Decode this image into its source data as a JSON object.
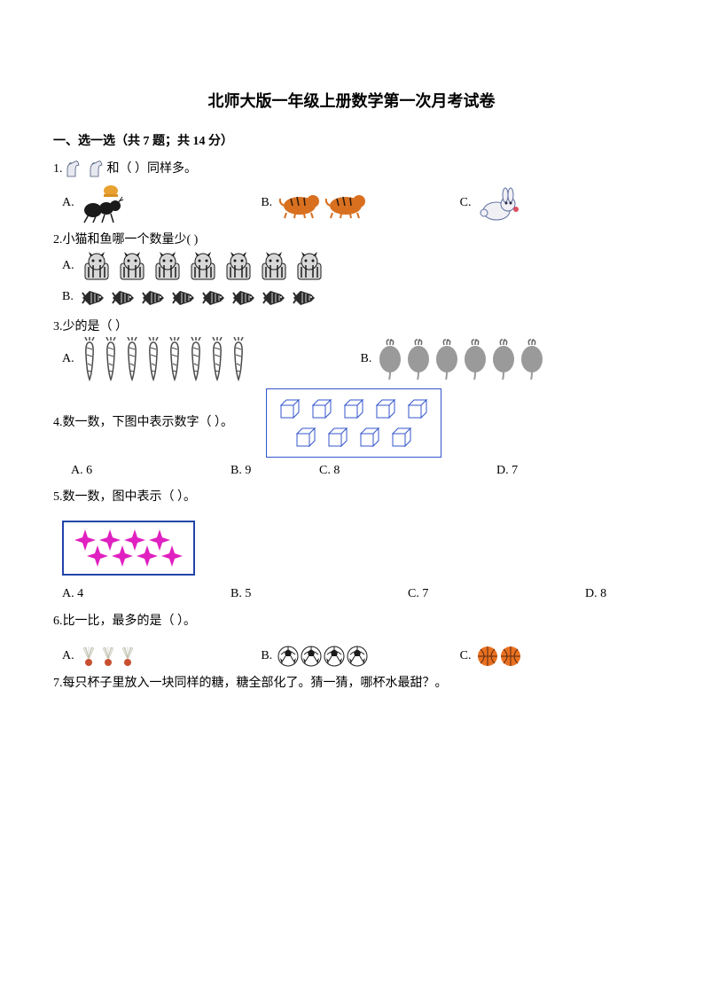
{
  "title": "北师大版一年级上册数学第一次月考试卷",
  "section1": {
    "header": "一、选一选（共 7 题；共 14 分）"
  },
  "q1": {
    "prefix": "1.",
    "mid": "和（  ）同样多。",
    "optA": "A.",
    "optB": "B.",
    "optC": "C.",
    "counts": {
      "horses": 2,
      "tigers": 2
    },
    "colors": {
      "horse_body": "#e8e8f0",
      "horse_outline": "#4a5a7a",
      "ant_body": "#1a1a1a",
      "ant_basket": "#e8a030",
      "tiger": "#d87020",
      "tiger_stripe": "#2a1a0a",
      "rabbit": "#f0f0f5",
      "rabbit_outline": "#6070a0"
    }
  },
  "q2": {
    "text": "2.小猫和鱼哪一个数量少(    )",
    "optA": "A.",
    "optB": "B.",
    "counts": {
      "cats": 7,
      "fish": 8
    },
    "colors": {
      "cat_body": "#d8d8d8",
      "cat_stripe": "#1a1a1a",
      "fish_body": "#2a2a2a",
      "fish_line": "#ffffff"
    }
  },
  "q3": {
    "text": "3.少的是（   ）",
    "optA": "A.",
    "optB": "B.",
    "counts": {
      "carrots": 8,
      "radishes": 6
    },
    "colors": {
      "carrot": "#4a4a4a",
      "radish_body": "#9a9a9a",
      "radish_leaf": "#6a6a6a"
    }
  },
  "q4": {
    "text": "4.数一数，下图中表示数字（   ）。",
    "optA": "A. 6",
    "optB": "B. 9",
    "optC": "C. 8",
    "optD": "D. 7",
    "cube_rows": [
      5,
      4
    ],
    "colors": {
      "cube_line": "#3355cc",
      "border": "#3355cc"
    }
  },
  "q5": {
    "text": "5.数一数，图中表示（   ）。",
    "optA": "A. 4",
    "optB": "B. 5",
    "optC": "C. 7",
    "optD": "D. 8",
    "star_rows": [
      4,
      4
    ],
    "colors": {
      "star": "#e020c0",
      "border": "#2244aa"
    }
  },
  "q6": {
    "text": "6.比一比，最多的是（     ）。",
    "optA": "A.",
    "optB": "B.",
    "optC": "C.",
    "counts": {
      "shuttles": 3,
      "soccers": 4,
      "bballs": 2
    },
    "colors": {
      "shuttle_feather": "#f0f0e8",
      "shuttle_base": "#c85030",
      "soccer_white": "#ffffff",
      "soccer_black": "#1a1a1a",
      "bball": "#e87020",
      "bball_line": "#5a2a10"
    }
  },
  "q7": {
    "text": "7.每只杯子里放入一块同样的糖，糖全部化了。猜一猜，哪杯水最甜？。"
  }
}
